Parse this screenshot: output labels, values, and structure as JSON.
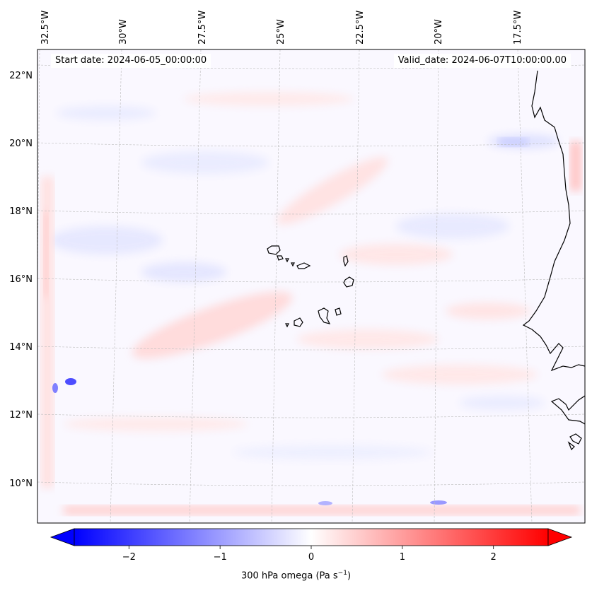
{
  "header": {
    "start_date": "Start date: 2024-06-05_00:00:00",
    "valid_date": "Valid_date: 2024-06-07T10:00:00.00"
  },
  "map": {
    "lon_labels": [
      "32.5°W",
      "30°W",
      "27.5°W",
      "25°W",
      "22.5°W",
      "20°W",
      "17.5°W"
    ],
    "lat_labels": [
      "22°N",
      "20°N",
      "18°N",
      "16°N",
      "14°N",
      "12°N",
      "10°N"
    ],
    "region": "Cabo Verde islands and West African coast (Mauritania, Senegal, Guinea-Bissau)"
  },
  "colorbar": {
    "label": "300 hPa omega (Pa s",
    "label_exp": "−1",
    "label_close": ")",
    "ticks": [
      "−2",
      "−1",
      "0",
      "1",
      "2"
    ],
    "min": -2.6,
    "max": 2.6,
    "cmap": "bwr",
    "color_low": "#0000ff",
    "color_mid": "#ffffff",
    "color_high": "#ff0000"
  }
}
